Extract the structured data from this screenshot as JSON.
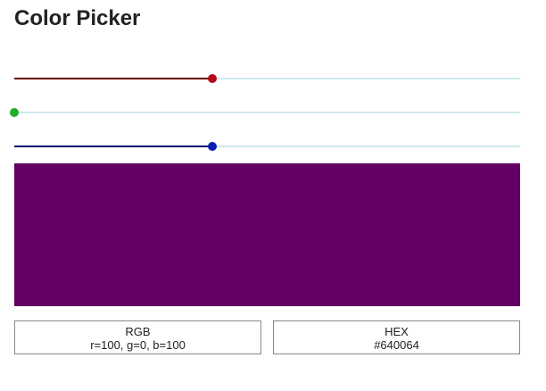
{
  "title": "Color Picker",
  "sliders": [
    {
      "channel": "r",
      "value": 100,
      "max": 255,
      "fill_color": "#660000",
      "thumb_color": "#b3081a"
    },
    {
      "channel": "g",
      "value": 0,
      "max": 255,
      "fill_color": "#006600",
      "thumb_color": "#1fae2a"
    },
    {
      "channel": "b",
      "value": 100,
      "max": 255,
      "fill_color": "#000066",
      "thumb_color": "#0a1fb0"
    }
  ],
  "swatch_color": "#640064",
  "rgb": {
    "label": "RGB",
    "value": "r=100, g=0, b=100"
  },
  "hex": {
    "label": "HEX",
    "value": "#640064"
  }
}
